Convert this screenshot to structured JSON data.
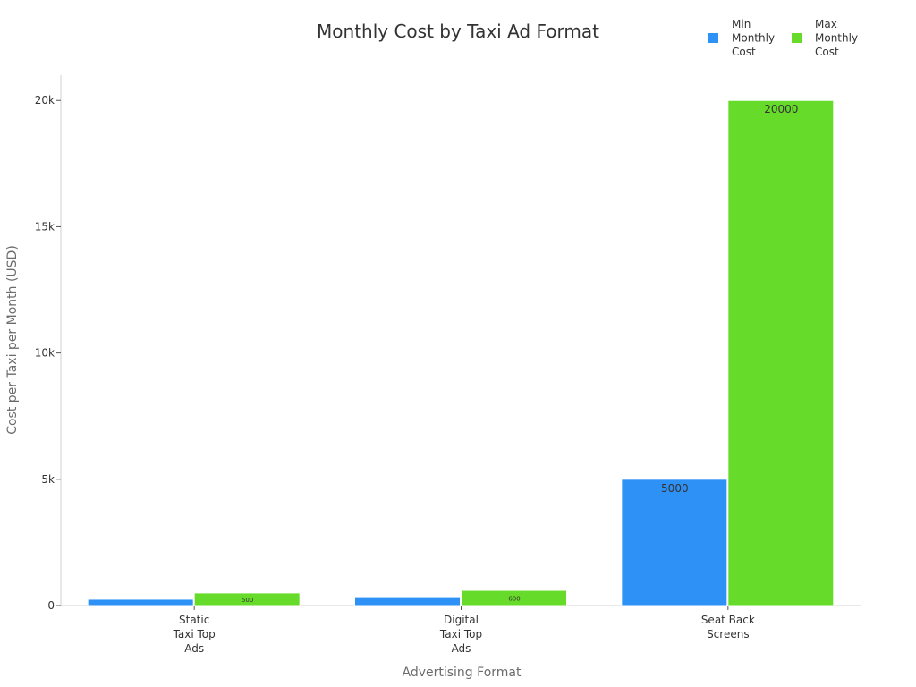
{
  "chart_data": {
    "type": "bar",
    "title": "Monthly Cost by Taxi Ad Format",
    "xlabel": "Advertising Format",
    "ylabel": "Cost per Taxi per Month (USD)",
    "categories": [
      [
        "Static",
        "Taxi Top",
        "Ads"
      ],
      [
        "Digital",
        "Taxi Top",
        "Ads"
      ],
      [
        "Seat Back",
        "Screens"
      ]
    ],
    "series": [
      {
        "name": [
          "Min",
          "Monthly",
          "Cost"
        ],
        "values": [
          250,
          350,
          5000
        ],
        "color": "#2e91f5"
      },
      {
        "name": [
          "Max",
          "Monthly",
          "Cost"
        ],
        "values": [
          500,
          600,
          20000
        ],
        "color": "#66db29"
      }
    ],
    "data_labels": [
      [
        "",
        "",
        "5000"
      ],
      [
        "500",
        "600",
        "20000"
      ]
    ],
    "ylim": [
      0,
      21000
    ],
    "yticks": [
      0,
      5000,
      10000,
      15000,
      20000
    ],
    "ytick_labels": [
      "0",
      "5k",
      "10k",
      "15k",
      "20k"
    ],
    "legend_position": "top-right",
    "grid": false
  }
}
